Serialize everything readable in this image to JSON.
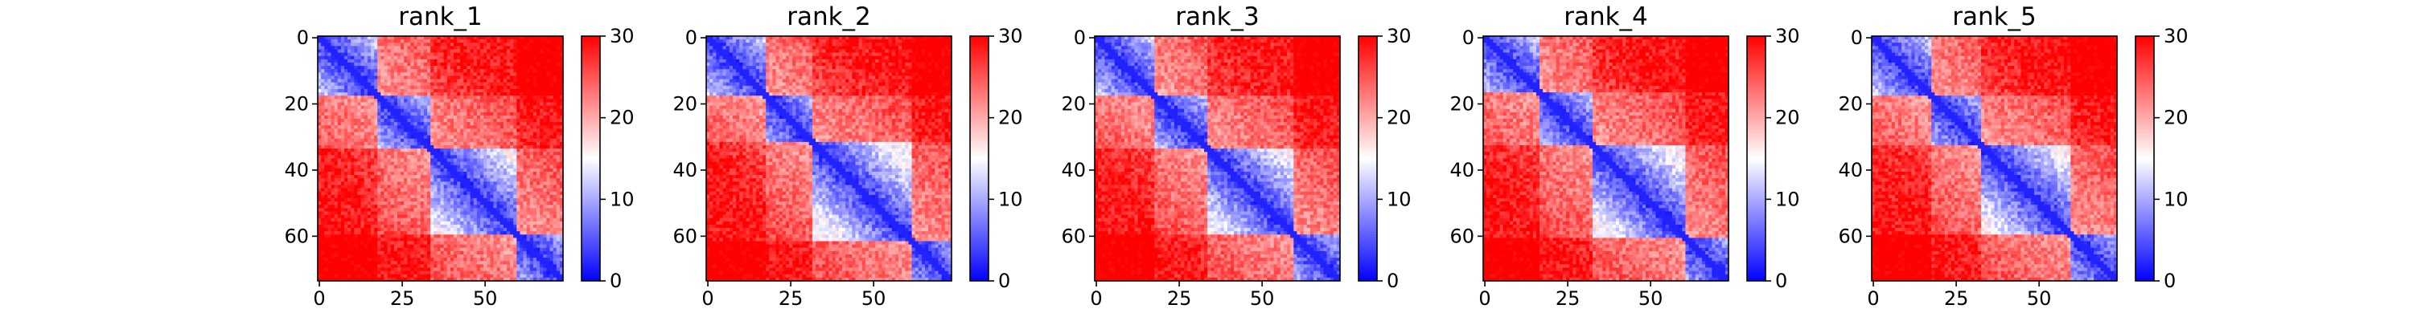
{
  "figure": {
    "background": "#ffffff"
  },
  "chart_data": [
    {
      "type": "heatmap",
      "title": "rank_1",
      "size": 74,
      "xticks": [
        0,
        25,
        50
      ],
      "yticks": [
        0,
        20,
        40,
        60
      ],
      "colorbar": {
        "min": 0,
        "max": 30,
        "ticks": [
          0,
          10,
          20,
          30
        ],
        "colors": [
          "#0000ff",
          "#ffffff",
          "#ff0000"
        ]
      },
      "domains": [
        [
          0,
          18
        ],
        [
          18,
          34
        ],
        [
          34,
          60
        ],
        [
          60,
          74
        ]
      ],
      "variant": 0
    },
    {
      "type": "heatmap",
      "title": "rank_2",
      "size": 74,
      "xticks": [
        0,
        25,
        50
      ],
      "yticks": [
        0,
        20,
        40,
        60
      ],
      "colorbar": {
        "min": 0,
        "max": 30,
        "ticks": [
          0,
          10,
          20,
          30
        ],
        "colors": [
          "#0000ff",
          "#ffffff",
          "#ff0000"
        ]
      },
      "domains": [
        [
          0,
          18
        ],
        [
          18,
          32
        ],
        [
          32,
          62
        ],
        [
          62,
          74
        ]
      ],
      "variant": 1
    },
    {
      "type": "heatmap",
      "title": "rank_3",
      "size": 74,
      "xticks": [
        0,
        25,
        50
      ],
      "yticks": [
        0,
        20,
        40,
        60
      ],
      "colorbar": {
        "min": 0,
        "max": 30,
        "ticks": [
          0,
          10,
          20,
          30
        ],
        "colors": [
          "#0000ff",
          "#ffffff",
          "#ff0000"
        ]
      },
      "domains": [
        [
          0,
          18
        ],
        [
          18,
          34
        ],
        [
          34,
          60
        ],
        [
          60,
          74
        ]
      ],
      "variant": 2
    },
    {
      "type": "heatmap",
      "title": "rank_4",
      "size": 74,
      "xticks": [
        0,
        25,
        50
      ],
      "yticks": [
        0,
        20,
        40,
        60
      ],
      "colorbar": {
        "min": 0,
        "max": 30,
        "ticks": [
          0,
          10,
          20,
          30
        ],
        "colors": [
          "#0000ff",
          "#ffffff",
          "#ff0000"
        ]
      },
      "domains": [
        [
          0,
          17
        ],
        [
          17,
          33
        ],
        [
          33,
          61
        ],
        [
          61,
          74
        ]
      ],
      "variant": 3
    },
    {
      "type": "heatmap",
      "title": "rank_5",
      "size": 74,
      "xticks": [
        0,
        25,
        50
      ],
      "yticks": [
        0,
        20,
        40,
        60
      ],
      "colorbar": {
        "min": 0,
        "max": 30,
        "ticks": [
          0,
          10,
          20,
          30
        ],
        "colors": [
          "#0000ff",
          "#ffffff",
          "#ff0000"
        ]
      },
      "domains": [
        [
          0,
          18
        ],
        [
          18,
          33
        ],
        [
          33,
          60
        ],
        [
          60,
          74
        ]
      ],
      "variant": 4
    }
  ]
}
